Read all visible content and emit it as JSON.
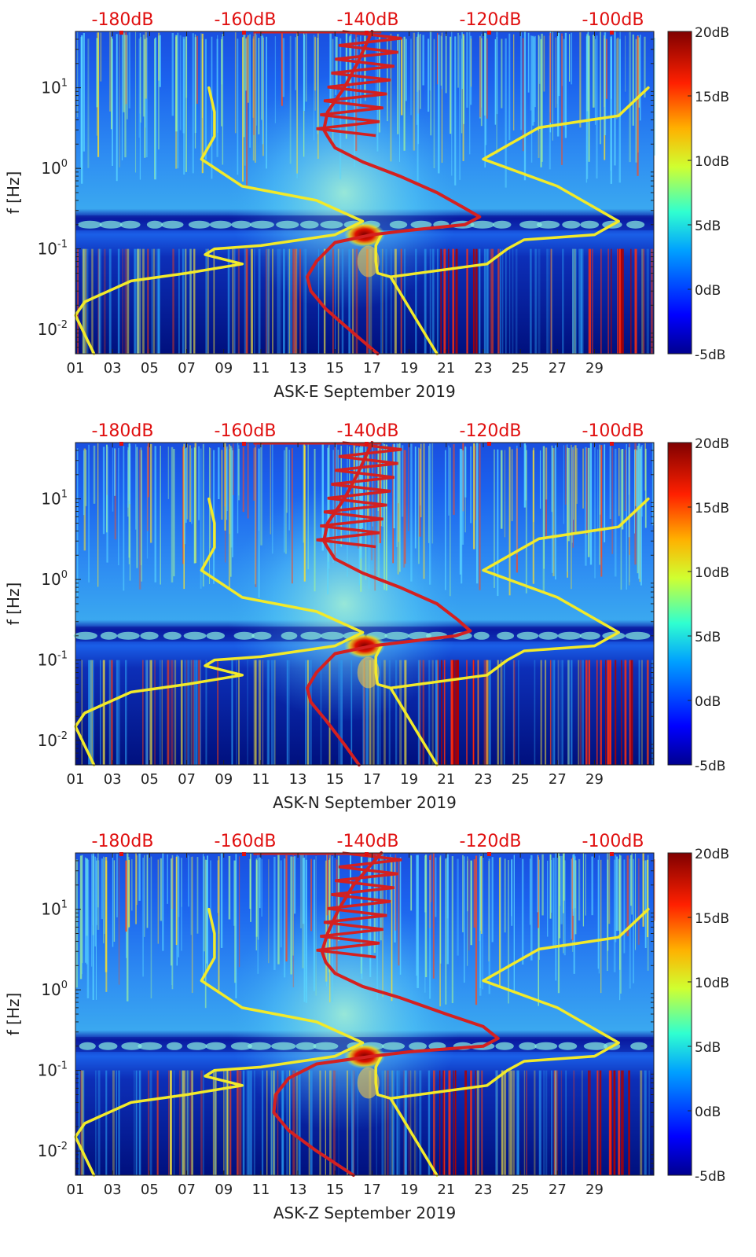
{
  "figure": {
    "description_free": true
  },
  "colorbar": {
    "labels": [
      "20dB",
      "15dB",
      "10dB",
      "5dB",
      "0dB",
      "-5dB"
    ],
    "range_db": [
      -5,
      20
    ]
  },
  "top_axis": {
    "labels": [
      "-180dB",
      "-160dB",
      "-140dB",
      "-120dB",
      "-100dB"
    ],
    "color": "#e01010"
  },
  "line_colors": {
    "noise_model": "#f2ea2a",
    "spectrum": "#d42020"
  },
  "chart_data": [
    {
      "type": "heatmap",
      "title": "",
      "xlabel": "ASK-E September 2019",
      "ylabel": "f [Hz]",
      "x_ticks": [
        "01",
        "03",
        "05",
        "07",
        "09",
        "11",
        "13",
        "15",
        "17",
        "19",
        "21",
        "23",
        "25",
        "27",
        "29"
      ],
      "y_ticks": [
        "10^1",
        "10^0",
        "10^-1",
        "10^-2"
      ],
      "ylim_hz": [
        0.005,
        50
      ],
      "top_ticks": [
        "-180dB",
        "-160dB",
        "-140dB",
        "-120dB",
        "-100dB"
      ],
      "series": [
        {
          "name": "yellow_model_left",
          "points": [
            [
              7.2,
              10
            ],
            [
              7.5,
              5
            ],
            [
              7.5,
              2.5
            ],
            [
              6.8,
              1.3
            ],
            [
              9,
              0.6
            ],
            [
              13,
              0.4
            ],
            [
              15.5,
              0.22
            ],
            [
              14,
              0.15
            ],
            [
              10,
              0.11
            ],
            [
              7.5,
              0.1
            ],
            [
              7,
              0.085
            ],
            [
              9,
              0.065
            ],
            [
              6,
              0.05
            ],
            [
              3,
              0.04
            ],
            [
              1.5,
              0.028
            ],
            [
              0.5,
              0.022
            ],
            [
              0,
              0.015
            ],
            [
              1,
              0.005
            ]
          ]
        },
        {
          "name": "yellow_model_right",
          "points": [
            [
              16.5,
              0.15
            ],
            [
              16.2,
              0.11
            ],
            [
              16.2,
              0.07
            ],
            [
              16.3,
              0.05
            ],
            [
              17,
              0.045
            ],
            [
              19.5,
              0.005
            ]
          ]
        },
        {
          "name": "yellow_model_far_right",
          "points": [
            [
              30.9,
              10
            ],
            [
              29.3,
              4.5
            ],
            [
              25,
              3.2
            ],
            [
              22,
              1.3
            ],
            [
              26,
              0.6
            ],
            [
              29.3,
              0.22
            ],
            [
              28,
              0.15
            ],
            [
              24.2,
              0.13
            ],
            [
              23.3,
              0.1
            ],
            [
              22.2,
              0.065
            ],
            [
              17,
              0.045
            ]
          ]
        },
        {
          "name": "red_spectrum",
          "points": [
            [
              16,
              50
            ],
            [
              15.2,
              20
            ],
            [
              14.5,
              10
            ],
            [
              13.6,
              5
            ],
            [
              13.4,
              3
            ],
            [
              13.6,
              2.5
            ],
            [
              14,
              1.8
            ],
            [
              15.5,
              1.2
            ],
            [
              17.5,
              0.8
            ],
            [
              19.5,
              0.5
            ],
            [
              21,
              0.32
            ],
            [
              21.8,
              0.25
            ],
            [
              21,
              0.2
            ],
            [
              18,
              0.17
            ],
            [
              16,
              0.15
            ],
            [
              14,
              0.12
            ],
            [
              13,
              0.07
            ],
            [
              12.5,
              0.045
            ],
            [
              12.7,
              0.03
            ],
            [
              13.5,
              0.018
            ],
            [
              15,
              0.009
            ],
            [
              16.3,
              0.005
            ]
          ]
        }
      ]
    },
    {
      "type": "heatmap",
      "title": "",
      "xlabel": "ASK-N September 2019",
      "ylabel": "f [Hz]",
      "x_ticks": [
        "01",
        "03",
        "05",
        "07",
        "09",
        "11",
        "13",
        "15",
        "17",
        "19",
        "21",
        "23",
        "25",
        "27",
        "29"
      ],
      "y_ticks": [
        "10^1",
        "10^0",
        "10^-1",
        "10^-2"
      ],
      "ylim_hz": [
        0.005,
        50
      ],
      "top_ticks": [
        "-180dB",
        "-160dB",
        "-140dB",
        "-120dB",
        "-100dB"
      ],
      "series": [
        {
          "name": "yellow_model_left",
          "points": [
            [
              7.2,
              10
            ],
            [
              7.5,
              5
            ],
            [
              7.5,
              2.5
            ],
            [
              6.8,
              1.3
            ],
            [
              9,
              0.6
            ],
            [
              13,
              0.4
            ],
            [
              15.5,
              0.22
            ],
            [
              14,
              0.15
            ],
            [
              10,
              0.11
            ],
            [
              7.5,
              0.1
            ],
            [
              7,
              0.085
            ],
            [
              9,
              0.065
            ],
            [
              6,
              0.05
            ],
            [
              3,
              0.04
            ],
            [
              1.5,
              0.028
            ],
            [
              0.5,
              0.022
            ],
            [
              0,
              0.015
            ],
            [
              1,
              0.005
            ]
          ]
        },
        {
          "name": "yellow_model_right",
          "points": [
            [
              16.5,
              0.15
            ],
            [
              16.2,
              0.11
            ],
            [
              16.2,
              0.07
            ],
            [
              16.3,
              0.05
            ],
            [
              17,
              0.045
            ],
            [
              19.5,
              0.005
            ]
          ]
        },
        {
          "name": "yellow_model_far_right",
          "points": [
            [
              30.9,
              10
            ],
            [
              29.3,
              4.5
            ],
            [
              25,
              3.2
            ],
            [
              22,
              1.3
            ],
            [
              26,
              0.6
            ],
            [
              29.3,
              0.22
            ],
            [
              28,
              0.15
            ],
            [
              24.2,
              0.13
            ],
            [
              23.3,
              0.1
            ],
            [
              22.2,
              0.065
            ],
            [
              17,
              0.045
            ]
          ]
        },
        {
          "name": "red_spectrum",
          "points": [
            [
              16,
              50
            ],
            [
              15.2,
              20
            ],
            [
              14.5,
              10
            ],
            [
              13.6,
              5
            ],
            [
              13.4,
              3
            ],
            [
              13.6,
              2.5
            ],
            [
              14,
              1.8
            ],
            [
              15.5,
              1.2
            ],
            [
              17.5,
              0.8
            ],
            [
              19.5,
              0.5
            ],
            [
              20.6,
              0.32
            ],
            [
              21.3,
              0.23
            ],
            [
              20.5,
              0.2
            ],
            [
              18,
              0.17
            ],
            [
              16,
              0.15
            ],
            [
              14,
              0.12
            ],
            [
              13,
              0.07
            ],
            [
              12.5,
              0.045
            ],
            [
              12.7,
              0.03
            ],
            [
              13.5,
              0.018
            ],
            [
              14.5,
              0.009
            ],
            [
              15.3,
              0.005
            ]
          ]
        }
      ]
    },
    {
      "type": "heatmap",
      "title": "",
      "xlabel": "ASK-Z September 2019",
      "ylabel": "f [Hz]",
      "x_ticks": [
        "01",
        "03",
        "05",
        "07",
        "09",
        "11",
        "13",
        "15",
        "17",
        "19",
        "21",
        "23",
        "25",
        "27",
        "29"
      ],
      "y_ticks": [
        "10^1",
        "10^0",
        "10^-1",
        "10^-2"
      ],
      "ylim_hz": [
        0.005,
        50
      ],
      "top_ticks": [
        "-180dB",
        "-160dB",
        "-140dB",
        "-120dB",
        "-100dB"
      ],
      "series": [
        {
          "name": "yellow_model_left",
          "points": [
            [
              7.2,
              10
            ],
            [
              7.5,
              5
            ],
            [
              7.5,
              2.5
            ],
            [
              6.8,
              1.3
            ],
            [
              9,
              0.6
            ],
            [
              13,
              0.4
            ],
            [
              15.5,
              0.22
            ],
            [
              14,
              0.15
            ],
            [
              10,
              0.11
            ],
            [
              7.5,
              0.1
            ],
            [
              7,
              0.085
            ],
            [
              9,
              0.065
            ],
            [
              6,
              0.05
            ],
            [
              3,
              0.04
            ],
            [
              1.5,
              0.028
            ],
            [
              0.5,
              0.022
            ],
            [
              0,
              0.015
            ],
            [
              1,
              0.005
            ]
          ]
        },
        {
          "name": "yellow_model_right",
          "points": [
            [
              16.5,
              0.15
            ],
            [
              16.2,
              0.11
            ],
            [
              16.2,
              0.07
            ],
            [
              16.3,
              0.05
            ],
            [
              17,
              0.045
            ],
            [
              19.5,
              0.005
            ]
          ]
        },
        {
          "name": "yellow_model_far_right",
          "points": [
            [
              30.9,
              10
            ],
            [
              29.3,
              4.5
            ],
            [
              25,
              3.2
            ],
            [
              22,
              1.3
            ],
            [
              26,
              0.6
            ],
            [
              29.3,
              0.22
            ],
            [
              28,
              0.15
            ],
            [
              24.2,
              0.13
            ],
            [
              23.3,
              0.1
            ],
            [
              22.2,
              0.065
            ],
            [
              17,
              0.045
            ]
          ]
        },
        {
          "name": "red_spectrum",
          "points": [
            [
              16.5,
              50
            ],
            [
              15,
              20
            ],
            [
              14.2,
              10
            ],
            [
              13.6,
              5
            ],
            [
              13.3,
              3
            ],
            [
              13.5,
              2.2
            ],
            [
              14,
              1.6
            ],
            [
              15.5,
              1.1
            ],
            [
              17.5,
              0.8
            ],
            [
              20,
              0.5
            ],
            [
              22,
              0.35
            ],
            [
              22.8,
              0.25
            ],
            [
              22,
              0.2
            ],
            [
              18,
              0.17
            ],
            [
              16,
              0.15
            ],
            [
              13,
              0.12
            ],
            [
              11.5,
              0.08
            ],
            [
              10.8,
              0.05
            ],
            [
              10.7,
              0.03
            ],
            [
              11.5,
              0.018
            ],
            [
              13,
              0.01
            ],
            [
              15,
              0.005
            ]
          ]
        }
      ]
    }
  ]
}
